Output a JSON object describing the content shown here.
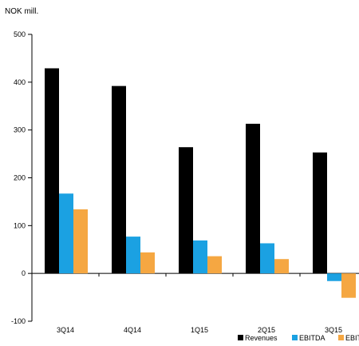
{
  "chart_data": {
    "type": "bar",
    "unit_label": "NOK mill.",
    "categories": [
      "3Q14",
      "4Q14",
      "1Q15",
      "2Q15",
      "3Q15"
    ],
    "series": [
      {
        "name": "Revenues",
        "color": "#000000",
        "values": [
          429,
          392,
          264,
          313,
          253
        ]
      },
      {
        "name": "EBITDA",
        "color": "#1ba1e2",
        "values": [
          167,
          77,
          69,
          63,
          -16
        ]
      },
      {
        "name": "EBIT",
        "color": "#f5a742",
        "values": [
          134,
          44,
          36,
          30,
          -51
        ]
      }
    ],
    "ylim": [
      -100,
      500
    ],
    "yticks": [
      -100,
      0,
      100,
      200,
      300,
      400,
      500
    ],
    "ytick_labels": [
      "-100",
      "0",
      "100",
      "200",
      "300",
      "400",
      "500"
    ],
    "legend_labels": [
      "Revenues",
      "EBITDA",
      "EBIT"
    ],
    "grid": false,
    "legend_position": "bottom-right"
  }
}
